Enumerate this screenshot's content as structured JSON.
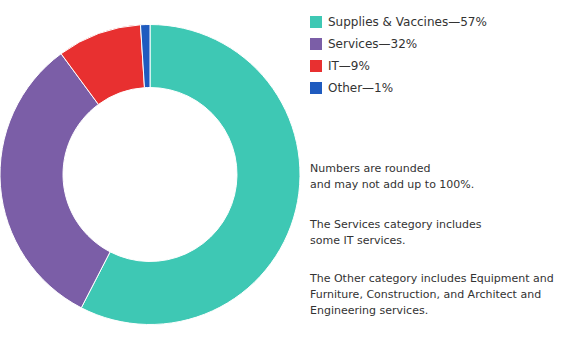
{
  "chart_data": {
    "type": "donut",
    "categories": [
      "Supplies & Vaccines—57%",
      "Services—32%",
      "IT—9%",
      "Other—1%"
    ],
    "values": [
      57,
      32,
      9,
      1
    ],
    "colors": [
      "#3ec8b4",
      "#7b5ea7",
      "#e83030",
      "#1f5bbf"
    ],
    "legend": "upper right",
    "annotations": [
      "Numbers are rounded\nand may not add up to 100%.",
      "The Services category includes\nsome IT services.",
      "The Other category includes Equipment and\nFurniture, Construction, and Architect and\nEngineering services."
    ]
  }
}
